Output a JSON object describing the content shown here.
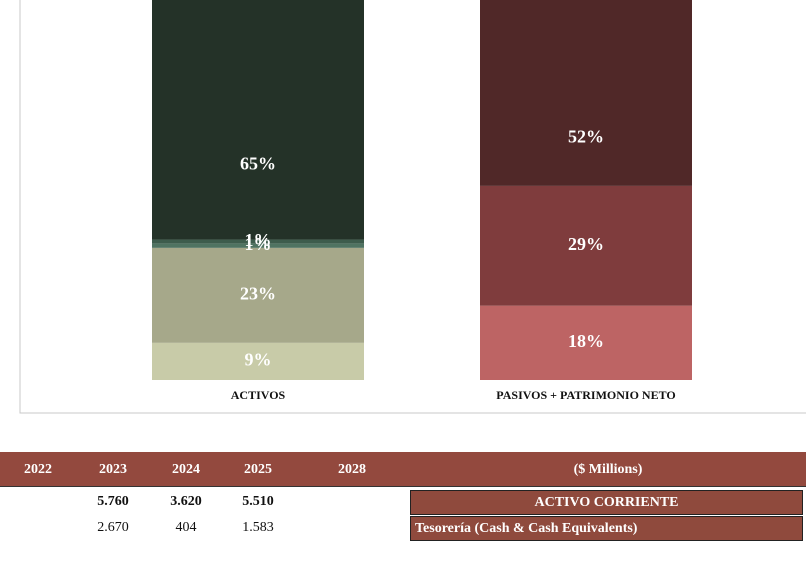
{
  "chart_data": {
    "type": "stacked-bar",
    "categories": [
      "ACTIVOS",
      "PASIVOS + PATRIMONIO NETO"
    ],
    "ylim": [
      0,
      100
    ],
    "stacks": [
      {
        "values": [
          9,
          23,
          1,
          1,
          65
        ],
        "value_labels": [
          "9%",
          "23%",
          "1%",
          "1%",
          "65%"
        ],
        "colors": [
          "#c8cba8",
          "#a6a88a",
          "#4f7361",
          "#3d5c4c",
          "#243228"
        ]
      },
      {
        "values": [
          18,
          29,
          52
        ],
        "value_labels": [
          "18%",
          "29%",
          "52%"
        ],
        "colors": [
          "#bd6464",
          "#7f3c3d",
          "#502828"
        ]
      }
    ]
  },
  "table": {
    "header": [
      "2022",
      "2023",
      "2024",
      "2025",
      "2028",
      "($ Millions)"
    ],
    "header_color": "#93493e",
    "rows": [
      {
        "cells": [
          null,
          "5.760",
          "3.620",
          "5.510",
          null
        ],
        "label": "ACTIVO CORRIENTE",
        "bold": true,
        "align": "center"
      },
      {
        "cells": [
          null,
          "2.670",
          "404",
          "1.583",
          null
        ],
        "label": "Tesorería (Cash & Cash Equivalents)",
        "bold": false,
        "align": "left"
      }
    ]
  }
}
